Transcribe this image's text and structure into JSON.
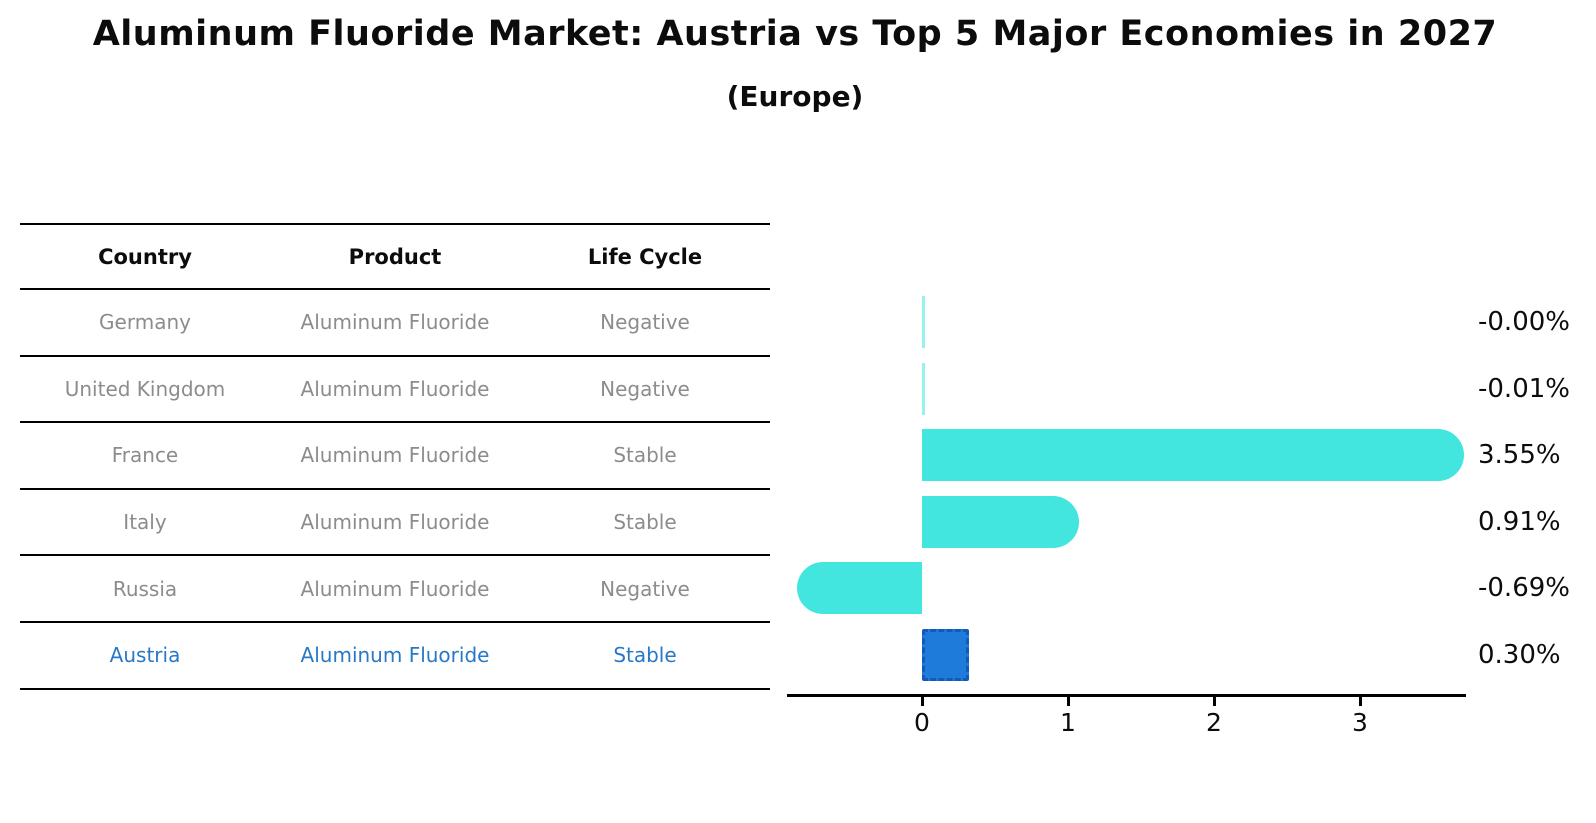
{
  "header": {
    "title": "Aluminum Fluoride Market: Austria vs Top 5 Major Economies in 2027",
    "subtitle": "(Europe)"
  },
  "table": {
    "headers": [
      "Country",
      "Product",
      "Life Cycle"
    ],
    "rows": [
      {
        "country": "Germany",
        "product": "Aluminum Fluoride",
        "life_cycle": "Negative",
        "highlight": false
      },
      {
        "country": "United Kingdom",
        "product": "Aluminum Fluoride",
        "life_cycle": "Negative",
        "highlight": false
      },
      {
        "country": "France",
        "product": "Aluminum Fluoride",
        "life_cycle": "Stable",
        "highlight": false
      },
      {
        "country": "Italy",
        "product": "Aluminum Fluoride",
        "life_cycle": "Stable",
        "highlight": false
      },
      {
        "country": "Russia",
        "product": "Aluminum Fluoride",
        "life_cycle": "Negative",
        "highlight": false
      },
      {
        "country": "Austria",
        "product": "Aluminum Fluoride",
        "life_cycle": "Stable",
        "highlight": true
      }
    ]
  },
  "chart_data": {
    "type": "bar",
    "orientation": "horizontal",
    "title": "Aluminum Fluoride Market: Austria vs Top 5 Major Economies in 2027",
    "subtitle": "(Europe)",
    "categories": [
      "Germany",
      "United Kingdom",
      "France",
      "Italy",
      "Russia",
      "Austria"
    ],
    "values": [
      -0.0,
      -0.01,
      3.55,
      0.91,
      -0.69,
      0.3
    ],
    "value_labels": [
      "-0.00%",
      "-0.01%",
      "3.55%",
      "0.91%",
      "-0.69%",
      "0.30%"
    ],
    "x_ticks": [
      0,
      1,
      2,
      3
    ],
    "xlim": [
      -0.93,
      3.72
    ],
    "grid": false,
    "legend": false,
    "bar_color": "#42e6de",
    "highlight_index": 5,
    "highlight_color": "#1f7bd9",
    "highlight_border_color": "#1359b8",
    "axis_color": "#000000",
    "muted_text_color": "#8c8c8c",
    "highlight_text_color": "#2878c8"
  }
}
